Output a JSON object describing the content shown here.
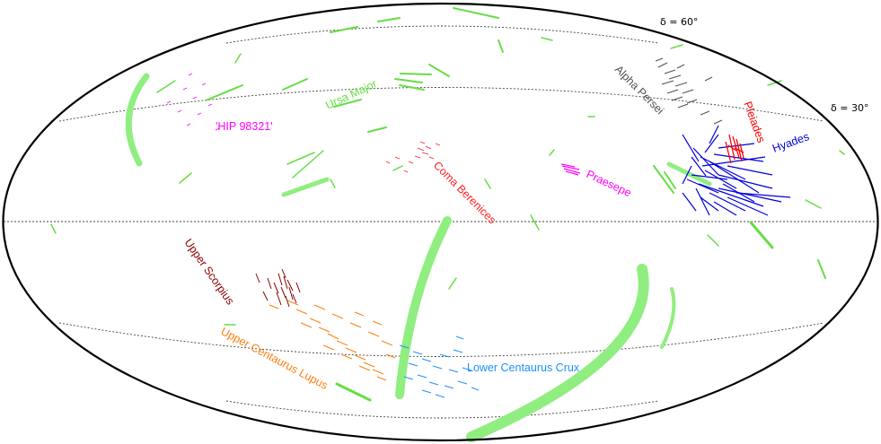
{
  "chart_data": {
    "type": "scatter",
    "projection": "Aitoff/Hammer all-sky ellipse",
    "grid": true,
    "declination_labels": [
      {
        "id": "dec60",
        "text": "δ = 60°"
      },
      {
        "id": "dec30",
        "text": "δ = 30°"
      }
    ],
    "series": [
      {
        "name": "Ursa Major",
        "color": "#66dd44"
      },
      {
        "name": "'HIP 98321'",
        "color": "#ff00ff"
      },
      {
        "name": "Coma Berenices",
        "color": "#ff0000"
      },
      {
        "name": "Alpha Persei",
        "color": "#505050"
      },
      {
        "name": "Pleiades",
        "color": "#ff0000"
      },
      {
        "name": "Hyades",
        "color": "#0000dd"
      },
      {
        "name": "Praesepe",
        "color": "#ff00ff"
      },
      {
        "name": "Upper Scorpius",
        "color": "#8b0000"
      },
      {
        "name": "Upper Centaurus Lupus",
        "color": "#ff7f0e"
      },
      {
        "name": "Lower Centaurus Crux",
        "color": "#1e90ff"
      }
    ]
  }
}
